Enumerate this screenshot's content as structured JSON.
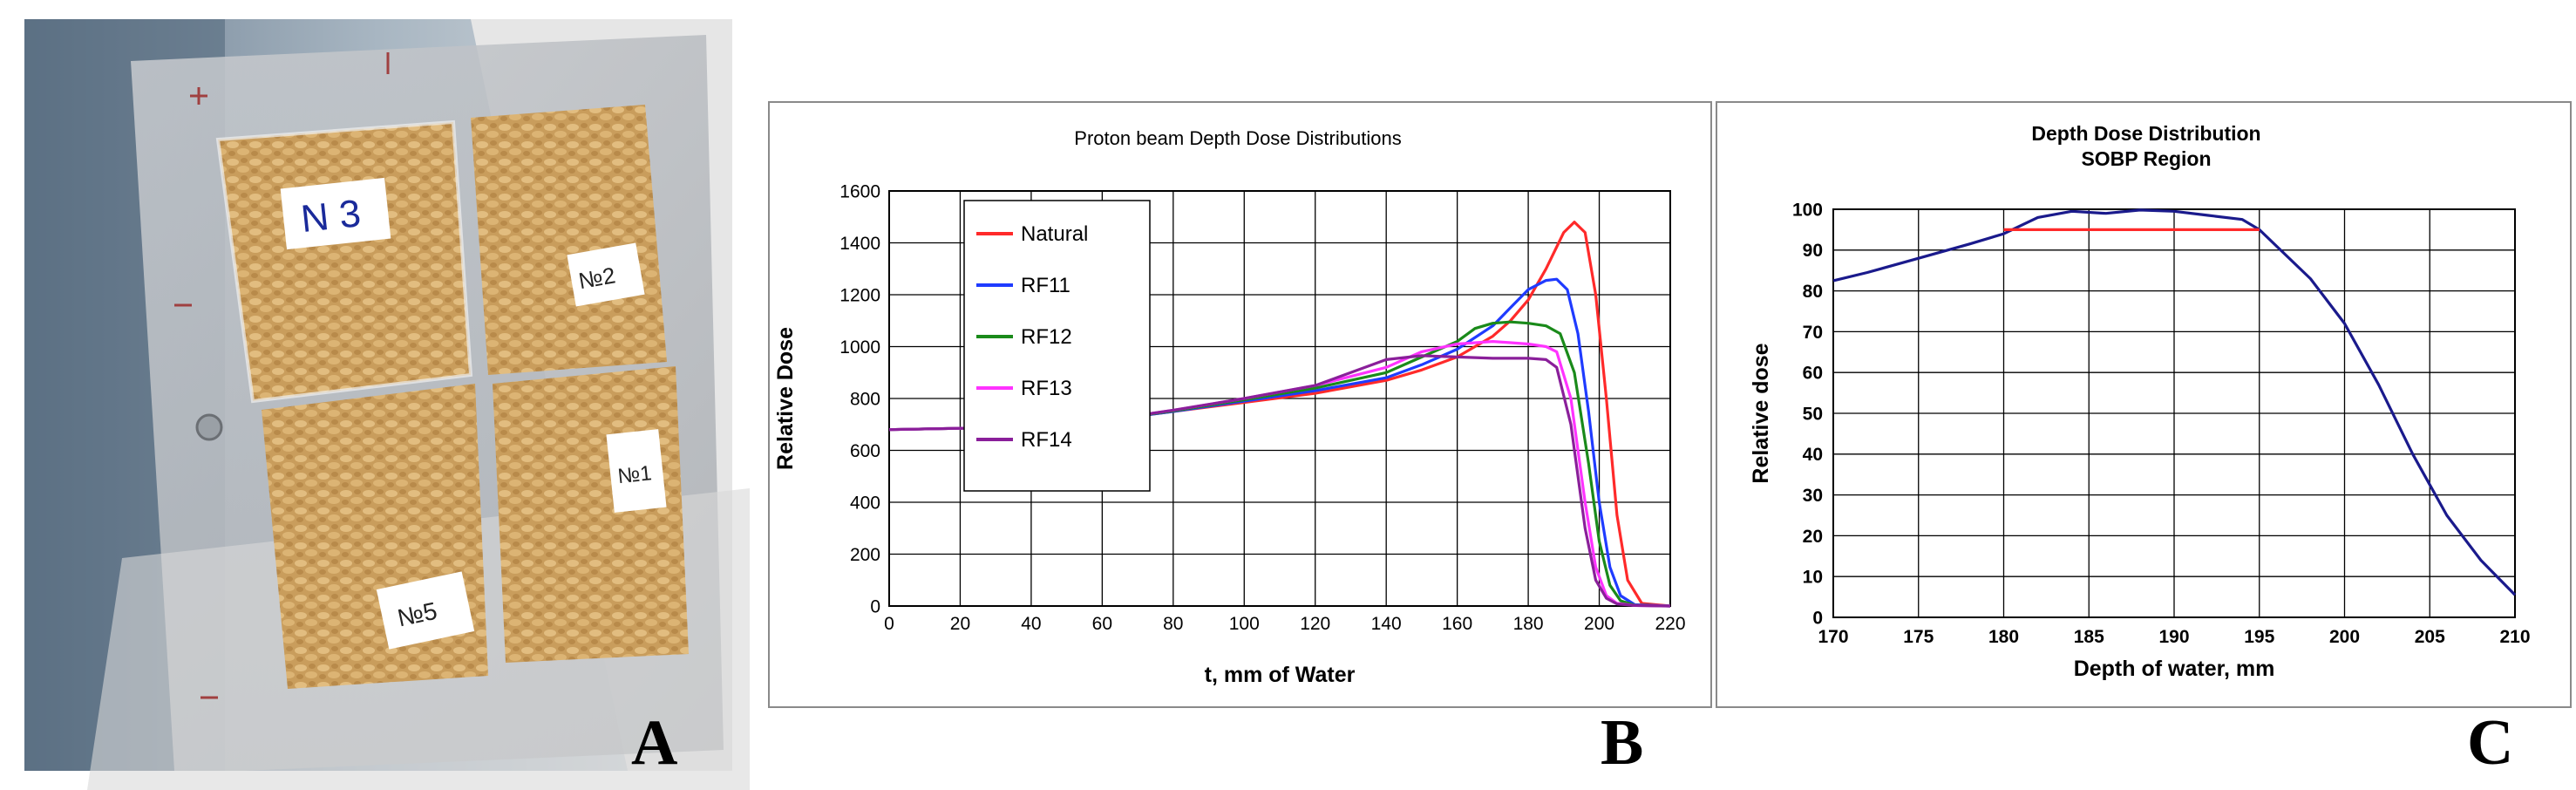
{
  "figure": {
    "panel_a": {
      "letter": "A",
      "bag_labels": [
        "N 3",
        "№2",
        "№1",
        "№5"
      ]
    },
    "panel_b_letter": "B",
    "panel_c_letter": "C"
  },
  "colors": {
    "natural": "#ff2a2a",
    "rf11": "#1f3bff",
    "rf12": "#1a8a1a",
    "rf13": "#ff33ff",
    "rf14": "#8a1f9a",
    "panel_c_main": "#1a1a8c",
    "panel_c_flat": "#ff2a2a"
  },
  "chart_data": [
    {
      "type": "line",
      "title": "Proton beam Depth Dose Distributions",
      "xlabel": "t, mm of Water",
      "ylabel": "Relative Dose",
      "xlim": [
        0,
        220
      ],
      "ylim": [
        0,
        1600
      ],
      "x_ticks": [
        "0",
        "20",
        "40",
        "60",
        "80",
        "100",
        "120",
        "140",
        "160",
        "180",
        "200",
        "220"
      ],
      "y_ticks": [
        "0",
        "200",
        "400",
        "600",
        "800",
        "1000",
        "1200",
        "1400",
        "1600"
      ],
      "grid": true,
      "legend_position": "top-left",
      "series": [
        {
          "name": "Natural",
          "color_key": "natural",
          "x": [
            0,
            20,
            40,
            60,
            80,
            100,
            120,
            140,
            150,
            160,
            170,
            175,
            180,
            185,
            190,
            193,
            196,
            199,
            202,
            205,
            208,
            212,
            220
          ],
          "y": [
            680,
            685,
            690,
            715,
            750,
            785,
            820,
            870,
            910,
            960,
            1040,
            1100,
            1180,
            1300,
            1440,
            1480,
            1440,
            1200,
            800,
            350,
            100,
            10,
            0
          ]
        },
        {
          "name": "RF11",
          "color_key": "rf11",
          "x": [
            0,
            20,
            40,
            60,
            80,
            100,
            120,
            140,
            150,
            160,
            170,
            175,
            180,
            185,
            188,
            191,
            194,
            197,
            200,
            203,
            206,
            210,
            220
          ],
          "y": [
            680,
            685,
            690,
            715,
            750,
            790,
            830,
            880,
            930,
            990,
            1080,
            1150,
            1220,
            1255,
            1260,
            1220,
            1050,
            750,
            400,
            150,
            40,
            5,
            0
          ]
        },
        {
          "name": "RF12",
          "color_key": "rf12",
          "x": [
            0,
            20,
            40,
            60,
            80,
            100,
            120,
            140,
            150,
            160,
            165,
            170,
            175,
            180,
            185,
            189,
            193,
            197,
            200,
            203,
            206,
            210,
            220
          ],
          "y": [
            680,
            685,
            690,
            715,
            752,
            795,
            840,
            900,
            960,
            1020,
            1070,
            1090,
            1095,
            1090,
            1080,
            1050,
            900,
            550,
            250,
            80,
            20,
            3,
            0
          ]
        },
        {
          "name": "RF13",
          "color_key": "rf13",
          "x": [
            0,
            20,
            40,
            60,
            80,
            100,
            120,
            140,
            150,
            160,
            170,
            175,
            180,
            185,
            188,
            192,
            196,
            199,
            202,
            205,
            210,
            220
          ],
          "y": [
            680,
            685,
            690,
            715,
            755,
            800,
            850,
            920,
            980,
            1010,
            1020,
            1015,
            1010,
            1000,
            980,
            800,
            400,
            150,
            40,
            10,
            2,
            0
          ]
        },
        {
          "name": "RF14",
          "color_key": "rf14",
          "x": [
            0,
            20,
            40,
            60,
            80,
            100,
            120,
            140,
            150,
            160,
            170,
            175,
            180,
            185,
            188,
            192,
            196,
            199,
            202,
            205,
            210,
            220
          ],
          "y": [
            680,
            685,
            690,
            715,
            755,
            800,
            850,
            950,
            965,
            960,
            955,
            955,
            955,
            950,
            920,
            700,
            300,
            100,
            30,
            8,
            2,
            0
          ]
        }
      ]
    },
    {
      "type": "line",
      "title": "Depth Dose Distribution",
      "subtitle": "SOBP Region",
      "xlabel": "Depth of water, mm",
      "ylabel": "Relative dose",
      "xlim": [
        170,
        210
      ],
      "ylim": [
        0,
        100
      ],
      "x_ticks": [
        "170",
        "175",
        "180",
        "185",
        "190",
        "195",
        "200",
        "205",
        "210"
      ],
      "y_ticks": [
        "0",
        "10",
        "20",
        "30",
        "40",
        "50",
        "60",
        "70",
        "80",
        "90",
        "100"
      ],
      "grid": true,
      "series": [
        {
          "color_key": "panel_c_main",
          "x": [
            170,
            172,
            175,
            178,
            180,
            182,
            184,
            186,
            188,
            190,
            192,
            194,
            195,
            196,
            198,
            200,
            202,
            204,
            206,
            208,
            210
          ],
          "y": [
            82.5,
            84.5,
            88,
            91.5,
            94,
            98,
            99.5,
            99,
            99.8,
            99.5,
            98.5,
            97.5,
            95,
            91,
            83,
            72,
            57,
            40,
            25,
            14,
            5.5
          ]
        },
        {
          "color_key": "panel_c_flat",
          "x": [
            180,
            195
          ],
          "y": [
            95,
            95
          ]
        }
      ]
    }
  ]
}
